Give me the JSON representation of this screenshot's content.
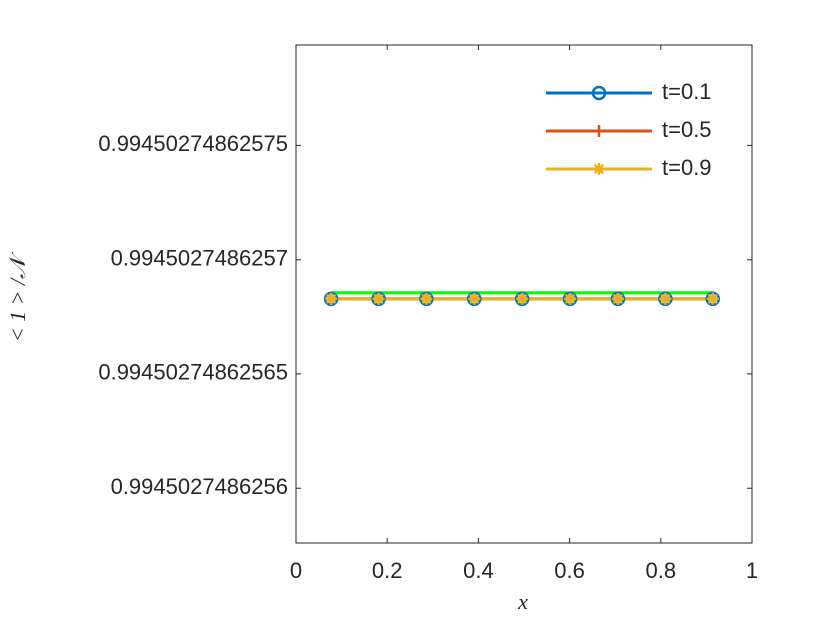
{
  "chart_data": {
    "type": "line",
    "xlabel": "x",
    "ylabel": "< 1 > /𝒩",
    "x": [
      0.077,
      0.181,
      0.286,
      0.391,
      0.496,
      0.601,
      0.706,
      0.81,
      0.914
    ],
    "series": [
      {
        "name": "t=0.1",
        "color": "#0072BD",
        "marker": "o",
        "values": [
          0.9945027486256829,
          0.9945027486256829,
          0.9945027486256829,
          0.9945027486256829,
          0.9945027486256829,
          0.9945027486256829,
          0.9945027486256829,
          0.9945027486256829,
          0.9945027486256829
        ]
      },
      {
        "name": "t=0.5",
        "color": "#D95319",
        "marker": "+",
        "values": [
          0.9945027486256829,
          0.9945027486256829,
          0.9945027486256829,
          0.9945027486256829,
          0.9945027486256829,
          0.9945027486256829,
          0.9945027486256829,
          0.9945027486256829,
          0.9945027486256829
        ]
      },
      {
        "name": "t=0.9",
        "color": "#EDB120",
        "marker": "*",
        "values": [
          0.9945027486256829,
          0.9945027486256829,
          0.9945027486256829,
          0.9945027486256829,
          0.9945027486256829,
          0.9945027486256829,
          0.9945027486256829,
          0.9945027486256829,
          0.9945027486256829
        ]
      },
      {
        "color": "#00FF00",
        "values": [
          0.9945027486256856,
          0.9945027486256856,
          0.9945027486256856,
          0.9945027486256856,
          0.9945027486256856,
          0.9945027486256856,
          0.9945027486256856,
          0.9945027486256856,
          0.9945027486256856
        ]
      }
    ],
    "xlim": [
      0,
      1
    ],
    "xticks": [
      0,
      0.2,
      0.4,
      0.6,
      0.8,
      1
    ],
    "ylim": [
      0.994502748625576,
      0.994502748625794
    ],
    "yticks": [
      0.9945027486256,
      0.99450274862565,
      0.9945027486257,
      0.99450274862575
    ],
    "legend": "upper right",
    "grid": false
  }
}
